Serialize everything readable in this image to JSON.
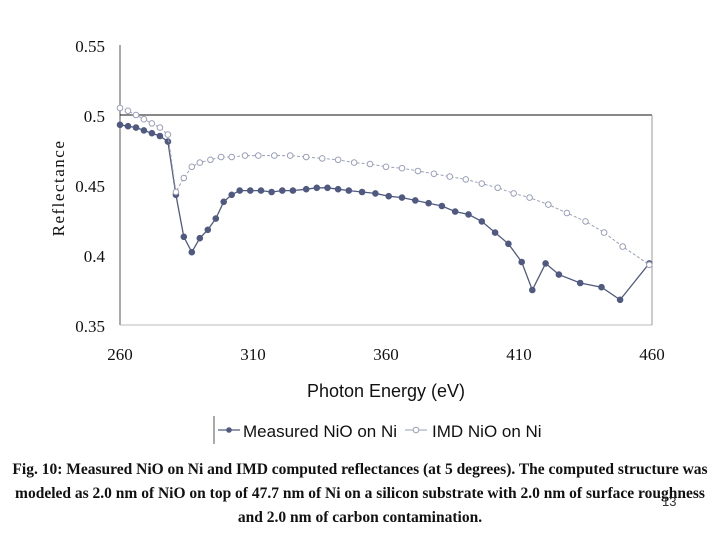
{
  "chart_data": {
    "type": "line",
    "xlabel": "Photon Energy (eV)",
    "ylabel": "Reflectance",
    "xlim": [
      260,
      460
    ],
    "ylim": [
      0.35,
      0.55
    ],
    "x_ticks": [
      "260",
      "310",
      "360",
      "410",
      "460"
    ],
    "y_ticks": [
      "0.35",
      "0.4",
      "0.45",
      "0.5",
      "0.55"
    ],
    "grid": false,
    "reference_line": 0.5,
    "legend_position": "bottom",
    "series": [
      {
        "name": "Measured NiO on Ni",
        "color": "#505a80",
        "marker": "filled-circle",
        "points": [
          [
            260,
            0.493
          ],
          [
            263,
            0.492
          ],
          [
            266,
            0.491
          ],
          [
            269,
            0.489
          ],
          [
            272,
            0.487
          ],
          [
            275,
            0.485
          ],
          [
            278,
            0.481
          ],
          [
            281,
            0.443
          ],
          [
            284,
            0.413
          ],
          [
            287,
            0.402
          ],
          [
            290,
            0.412
          ],
          [
            293,
            0.418
          ],
          [
            296,
            0.426
          ],
          [
            299,
            0.438
          ],
          [
            302,
            0.443
          ],
          [
            305,
            0.446
          ],
          [
            309,
            0.446
          ],
          [
            313,
            0.446
          ],
          [
            317,
            0.445
          ],
          [
            321,
            0.446
          ],
          [
            325,
            0.446
          ],
          [
            330,
            0.447
          ],
          [
            334,
            0.448
          ],
          [
            338,
            0.448
          ],
          [
            342,
            0.447
          ],
          [
            346,
            0.446
          ],
          [
            351,
            0.445
          ],
          [
            356,
            0.444
          ],
          [
            361,
            0.442
          ],
          [
            366,
            0.441
          ],
          [
            371,
            0.439
          ],
          [
            376,
            0.437
          ],
          [
            381,
            0.435
          ],
          [
            386,
            0.431
          ],
          [
            391,
            0.429
          ],
          [
            396,
            0.424
          ],
          [
            401,
            0.416
          ],
          [
            406,
            0.408
          ],
          [
            411,
            0.395
          ],
          [
            415,
            0.375
          ],
          [
            420,
            0.394
          ],
          [
            425,
            0.386
          ],
          [
            433,
            0.38
          ],
          [
            441,
            0.377
          ],
          [
            448,
            0.368
          ],
          [
            459,
            0.394
          ]
        ]
      },
      {
        "name": "IMD NiO on Ni",
        "color": "#9aa0b8",
        "marker": "open-circle",
        "points": [
          [
            260,
            0.505
          ],
          [
            263,
            0.503
          ],
          [
            266,
            0.5
          ],
          [
            269,
            0.497
          ],
          [
            272,
            0.494
          ],
          [
            275,
            0.491
          ],
          [
            278,
            0.486
          ],
          [
            281,
            0.445
          ],
          [
            284,
            0.455
          ],
          [
            287,
            0.463
          ],
          [
            290,
            0.466
          ],
          [
            294,
            0.468
          ],
          [
            298,
            0.47
          ],
          [
            302,
            0.47
          ],
          [
            307,
            0.471
          ],
          [
            312,
            0.471
          ],
          [
            318,
            0.471
          ],
          [
            324,
            0.471
          ],
          [
            330,
            0.47
          ],
          [
            336,
            0.469
          ],
          [
            342,
            0.468
          ],
          [
            348,
            0.466
          ],
          [
            354,
            0.465
          ],
          [
            360,
            0.463
          ],
          [
            366,
            0.462
          ],
          [
            372,
            0.46
          ],
          [
            378,
            0.458
          ],
          [
            384,
            0.456
          ],
          [
            390,
            0.454
          ],
          [
            396,
            0.451
          ],
          [
            402,
            0.448
          ],
          [
            408,
            0.444
          ],
          [
            414,
            0.441
          ],
          [
            421,
            0.436
          ],
          [
            428,
            0.43
          ],
          [
            435,
            0.424
          ],
          [
            442,
            0.416
          ],
          [
            449,
            0.406
          ],
          [
            459,
            0.393
          ]
        ]
      }
    ]
  },
  "caption": {
    "text": "Fig. 10: Measured NiO on Ni and IMD computed reflectances (at 5 degrees).  The computed structure was modeled as 2.0 nm of NiO on top of 47.7 nm of Ni on a silicon substrate with 2.0 nm of surface roughness and 2.0 nm of carbon contamination."
  },
  "slide_number": "13"
}
